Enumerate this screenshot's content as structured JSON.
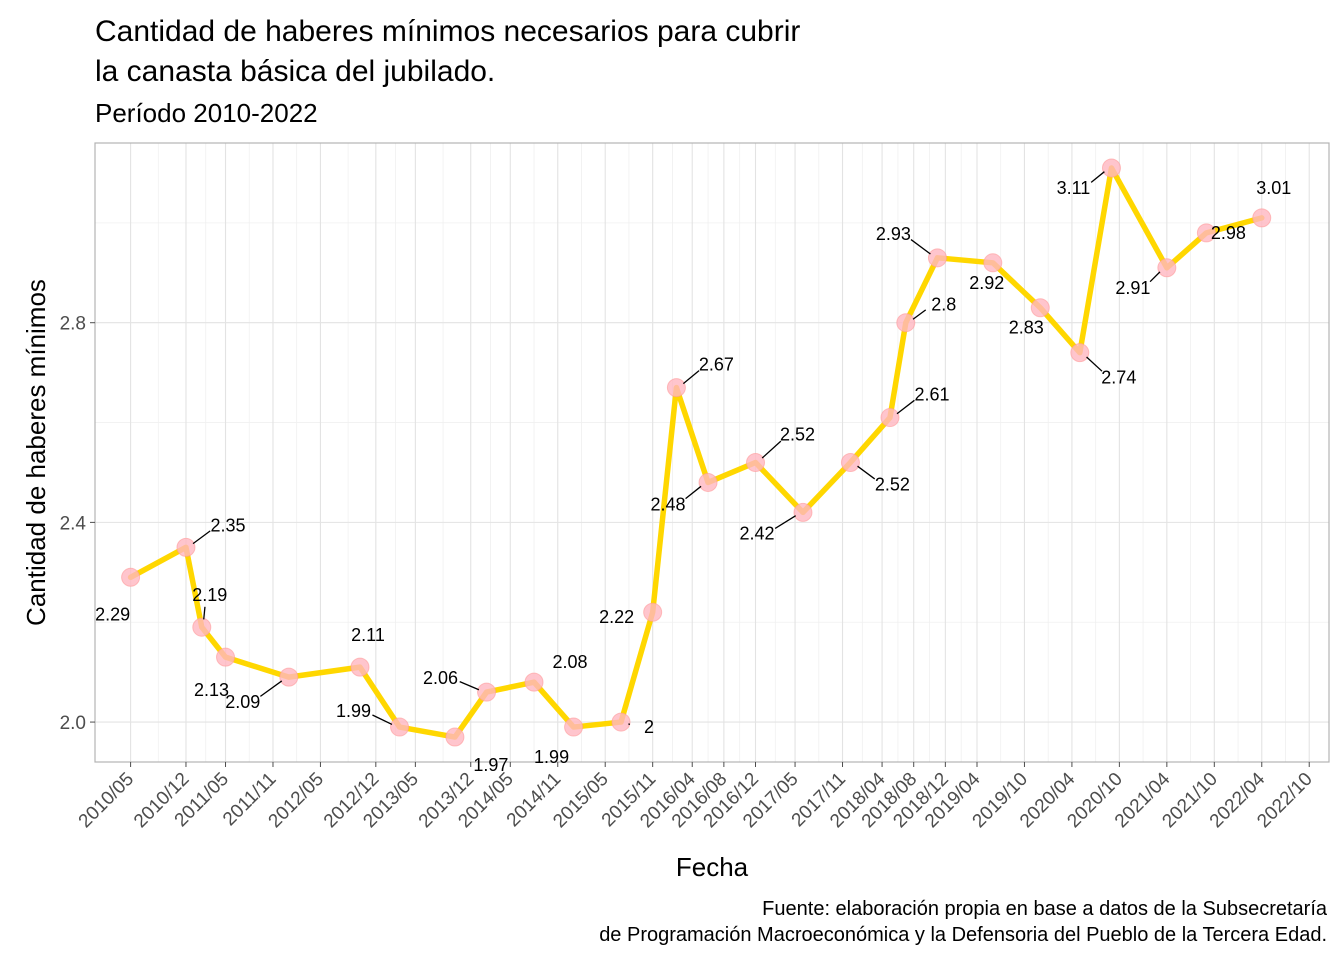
{
  "chart_data": {
    "type": "line",
    "title_lines": [
      "Cantidad de haberes mínimos necesarios para cubrir",
      "la canasta básica del jubilado."
    ],
    "subtitle": "Período 2010-2022",
    "xlabel": "Fecha",
    "ylabel": "Cantidad de haberes mínimos",
    "caption_lines": [
      "Fuente: elaboración propia en base a datos de la Subsecretaría",
      "de Programación Macroeconómica y la Defensoria del Pueblo de la Tercera Edad."
    ],
    "ylim": [
      1.92,
      3.16
    ],
    "y_ticks": [
      2.0,
      2.4,
      2.8
    ],
    "y_tick_labels": [
      "2.0",
      "2.4",
      "2.8"
    ],
    "x_ticks": [
      "2010/05",
      "2010/12",
      "2011/05",
      "2011/11",
      "2012/05",
      "2012/12",
      "2013/05",
      "2013/12",
      "2014/05",
      "2014/11",
      "2015/05",
      "2015/11",
      "2016/04",
      "2016/08",
      "2016/12",
      "2017/05",
      "2017/11",
      "2018/04",
      "2018/08",
      "2018/12",
      "2019/04",
      "2019/10",
      "2020/04",
      "2020/10",
      "2021/04",
      "2021/10",
      "2022/04",
      "2022/10"
    ],
    "grid": true,
    "line_color": "#FFD700",
    "point_color": "#FFB6C1",
    "points": [
      {
        "x": "2010/05",
        "y": 2.29,
        "label": "2.29"
      },
      {
        "x": "2010/12",
        "y": 2.35,
        "label": "2.35"
      },
      {
        "x": "2011/02",
        "y": 2.19,
        "label": "2.19"
      },
      {
        "x": "2011/05",
        "y": 2.13,
        "label": "2.13"
      },
      {
        "x": "2012/01",
        "y": 2.09,
        "label": "2.09"
      },
      {
        "x": "2012/10",
        "y": 2.11,
        "label": "2.11"
      },
      {
        "x": "2013/03",
        "y": 1.99,
        "label": "1.99"
      },
      {
        "x": "2013/10",
        "y": 1.97,
        "label": "1.97"
      },
      {
        "x": "2014/02",
        "y": 2.06,
        "label": "2.06"
      },
      {
        "x": "2014/08",
        "y": 2.08,
        "label": "2.08"
      },
      {
        "x": "2015/01",
        "y": 1.99,
        "label": "1.99"
      },
      {
        "x": "2015/07",
        "y": 2.0,
        "label": "2"
      },
      {
        "x": "2015/11",
        "y": 2.22,
        "label": "2.22"
      },
      {
        "x": "2016/02",
        "y": 2.67,
        "label": "2.67"
      },
      {
        "x": "2016/06",
        "y": 2.48,
        "label": "2.48"
      },
      {
        "x": "2016/12",
        "y": 2.52,
        "label": "2.52"
      },
      {
        "x": "2017/06",
        "y": 2.42,
        "label": "2.42"
      },
      {
        "x": "2017/12",
        "y": 2.52,
        "label": "2.52"
      },
      {
        "x": "2018/05",
        "y": 2.61,
        "label": "2.61"
      },
      {
        "x": "2018/07",
        "y": 2.8,
        "label": "2.8"
      },
      {
        "x": "2018/11",
        "y": 2.93,
        "label": "2.93"
      },
      {
        "x": "2019/06",
        "y": 2.92,
        "label": "2.92"
      },
      {
        "x": "2019/12",
        "y": 2.83,
        "label": "2.83"
      },
      {
        "x": "2020/05",
        "y": 2.74,
        "label": "2.74"
      },
      {
        "x": "2020/09",
        "y": 3.11,
        "label": "3.11"
      },
      {
        "x": "2021/04",
        "y": 2.91,
        "label": "2.91"
      },
      {
        "x": "2021/09",
        "y": 2.98,
        "label": "2.98"
      },
      {
        "x": "2022/04",
        "y": 3.01,
        "label": "3.01"
      }
    ]
  }
}
